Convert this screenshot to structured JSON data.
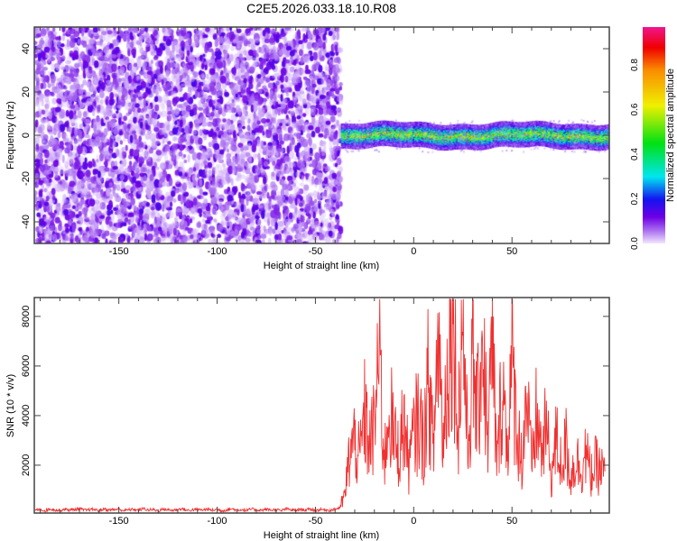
{
  "title": "C2E5.2026.033.18.10.R08",
  "chart_data": [
    {
      "type": "heatmap",
      "xlabel": "Height of straight line (km)",
      "ylabel": "Frequency (Hz)",
      "xlim": [
        -193,
        99.5
      ],
      "ylim": [
        -50,
        50
      ],
      "xticks": [
        -150,
        -100,
        -50,
        0,
        50
      ],
      "yticks": [
        -40,
        -20,
        0,
        20,
        40
      ],
      "colorbar": {
        "label": "Normalized spectral amplitude",
        "range": [
          0,
          0.97
        ],
        "ticks": [
          "0.0",
          "0.2",
          "0.4",
          "0.6",
          "0.8"
        ]
      },
      "noise_region": {
        "x_max": -37,
        "amplitude_range": [
          0.02,
          0.15
        ]
      },
      "signal_band": {
        "x_min": -37,
        "center_hz": 0,
        "half_width_hz": 4,
        "amplitude_range": [
          0.2,
          0.95
        ]
      }
    },
    {
      "type": "line",
      "xlabel": "Height of straight line (km)",
      "ylabel": "SNR (10 * v/v)",
      "xlim": [
        -193,
        99.5
      ],
      "ylim": [
        70,
        8760
      ],
      "xticks": [
        -150,
        -100,
        -50,
        0,
        50
      ],
      "yticks": [
        2000,
        4000,
        6000,
        8000
      ],
      "color": "#f03030",
      "x_start": -192.5,
      "x_step": 2.5,
      "values": [
        180,
        220,
        160,
        240,
        200,
        170,
        230,
        190,
        210,
        250,
        180,
        200,
        220,
        160,
        240,
        190,
        210,
        230,
        170,
        200,
        220,
        180,
        250,
        190,
        210,
        160,
        230,
        200,
        180,
        220,
        240,
        170,
        200,
        210,
        190,
        230,
        180,
        220,
        160,
        200,
        240,
        190,
        210,
        170,
        230,
        200,
        180,
        220,
        190,
        210,
        160,
        240,
        200,
        180,
        220,
        190,
        230,
        170,
        210,
        200,
        180,
        220,
        300,
        800,
        2500,
        3000,
        2200,
        4000,
        2800,
        3500,
        7000,
        2000,
        4500,
        3000,
        2500,
        3800,
        2000,
        3200,
        4000,
        2800,
        5500,
        2500,
        7500,
        3000,
        6500,
        8700,
        3500,
        8000,
        2500,
        6000,
        4000,
        7500,
        3000,
        6500,
        2000,
        5500,
        2800,
        6000,
        3500,
        2200,
        5000,
        1800,
        4000,
        2500,
        3500,
        1500,
        3000,
        2000,
        2800,
        1500,
        2300,
        1800,
        2500,
        1600,
        2000,
        1800,
        1700
      ]
    }
  ]
}
